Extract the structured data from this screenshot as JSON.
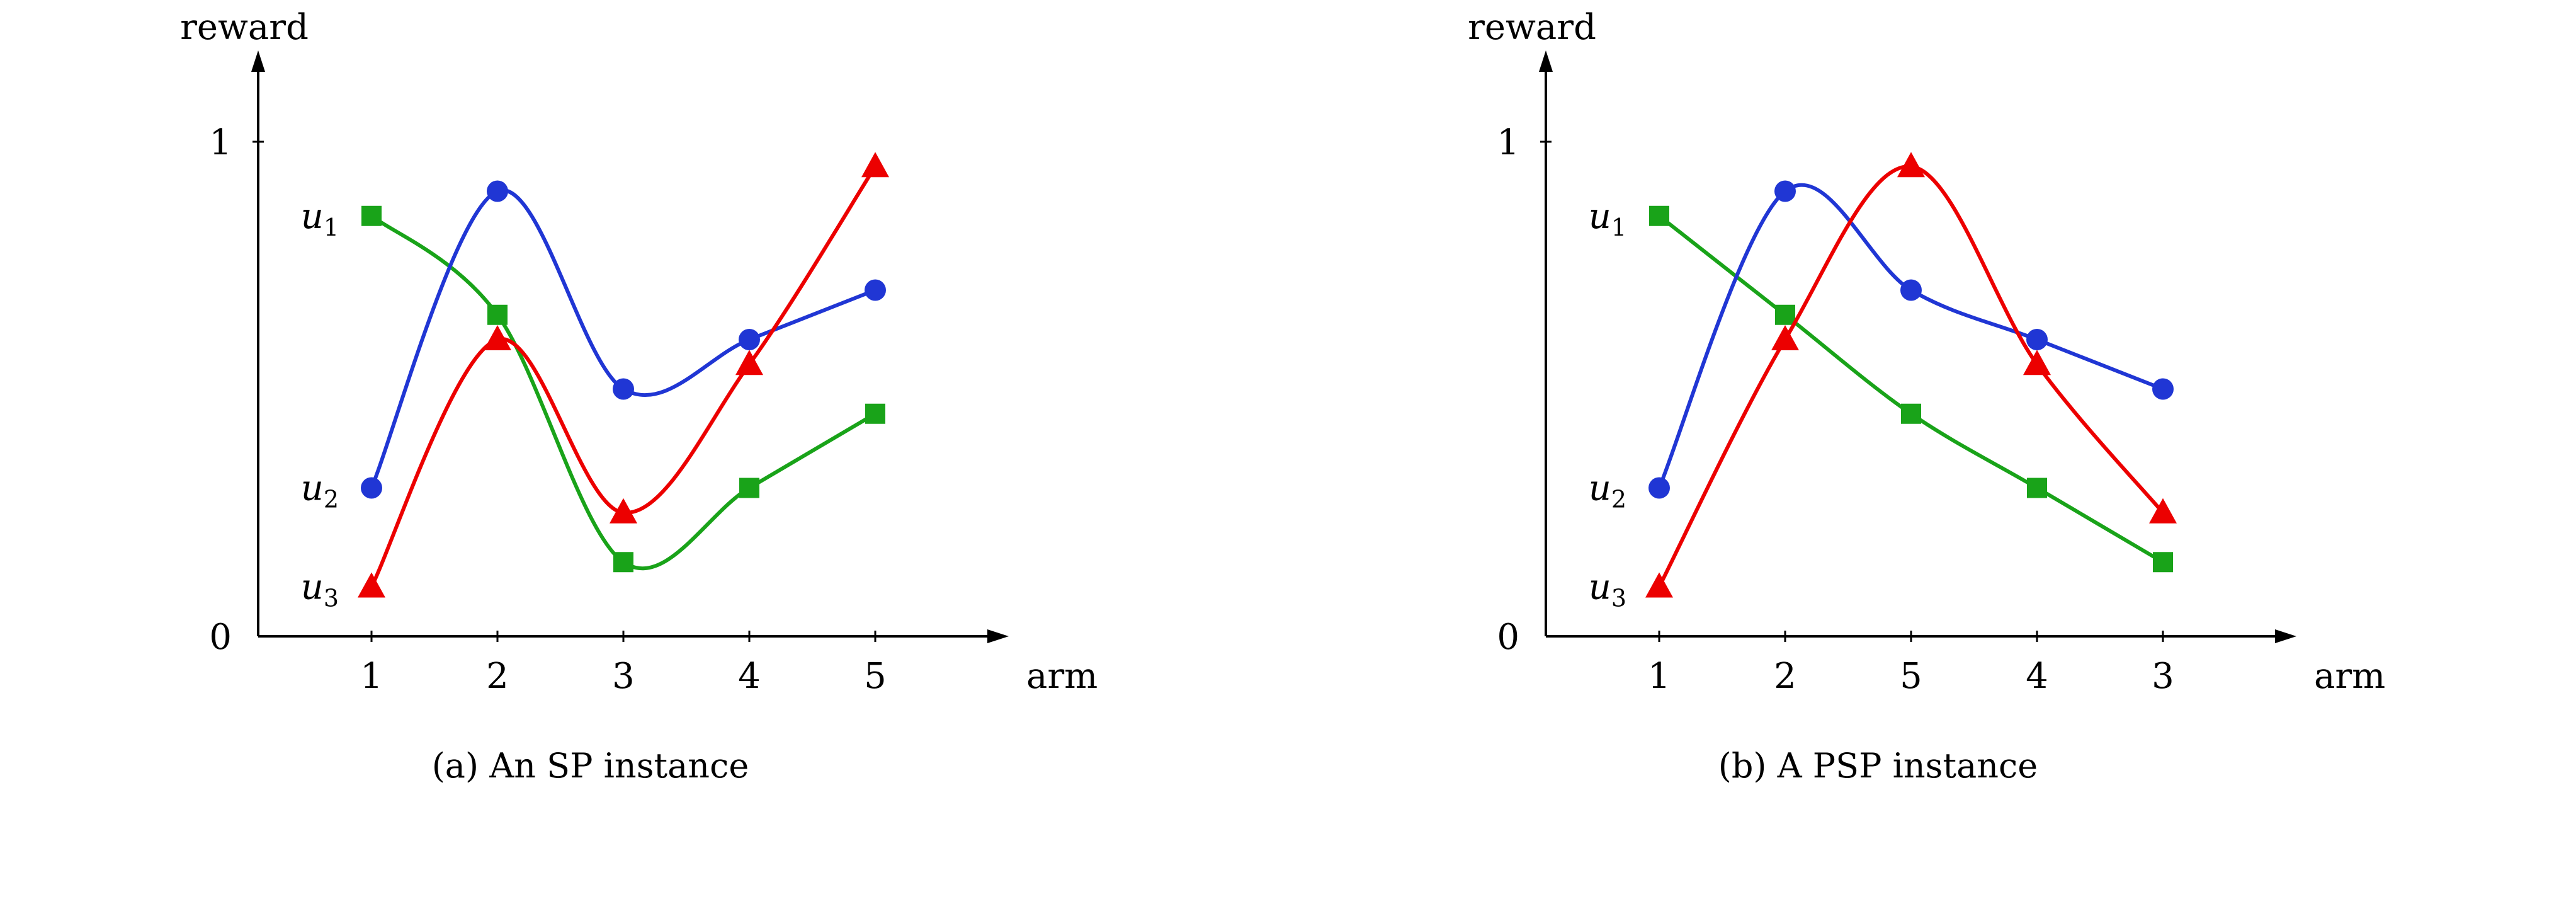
{
  "chart_data": [
    {
      "type": "line",
      "caption": "(a) An SP instance",
      "xlabel": "arm",
      "ylabel": "reward",
      "ylim": [
        0,
        1
      ],
      "x_tick_labels": [
        "1",
        "2",
        "3",
        "4",
        "5"
      ],
      "y_ticks": [
        {
          "label": "0",
          "value": 0
        },
        {
          "label": "1",
          "value": 1
        }
      ],
      "series": [
        {
          "name": "u1",
          "label_base": "u",
          "label_sub": "1",
          "color": "#19A319",
          "marker": "square",
          "values": [
            0.85,
            0.65,
            0.15,
            0.3,
            0.45
          ]
        },
        {
          "name": "u2",
          "label_base": "u",
          "label_sub": "2",
          "color": "#2036D4",
          "marker": "circle",
          "values": [
            0.3,
            0.9,
            0.5,
            0.6,
            0.7
          ]
        },
        {
          "name": "u3",
          "label_base": "u",
          "label_sub": "3",
          "color": "#EC0000",
          "marker": "triangle",
          "values": [
            0.1,
            0.6,
            0.25,
            0.55,
            0.95
          ]
        }
      ]
    },
    {
      "type": "line",
      "caption": "(b) A PSP instance",
      "xlabel": "arm",
      "ylabel": "reward",
      "ylim": [
        0,
        1
      ],
      "x_tick_labels": [
        "1",
        "2",
        "5",
        "4",
        "3"
      ],
      "y_ticks": [
        {
          "label": "0",
          "value": 0
        },
        {
          "label": "1",
          "value": 1
        }
      ],
      "series": [
        {
          "name": "u1",
          "label_base": "u",
          "label_sub": "1",
          "color": "#19A319",
          "marker": "square",
          "values": [
            0.85,
            0.65,
            0.45,
            0.3,
            0.15
          ]
        },
        {
          "name": "u2",
          "label_base": "u",
          "label_sub": "2",
          "color": "#2036D4",
          "marker": "circle",
          "values": [
            0.3,
            0.9,
            0.7,
            0.6,
            0.5
          ]
        },
        {
          "name": "u3",
          "label_base": "u",
          "label_sub": "3",
          "color": "#EC0000",
          "marker": "triangle",
          "values": [
            0.1,
            0.6,
            0.95,
            0.55,
            0.25
          ]
        }
      ]
    }
  ]
}
